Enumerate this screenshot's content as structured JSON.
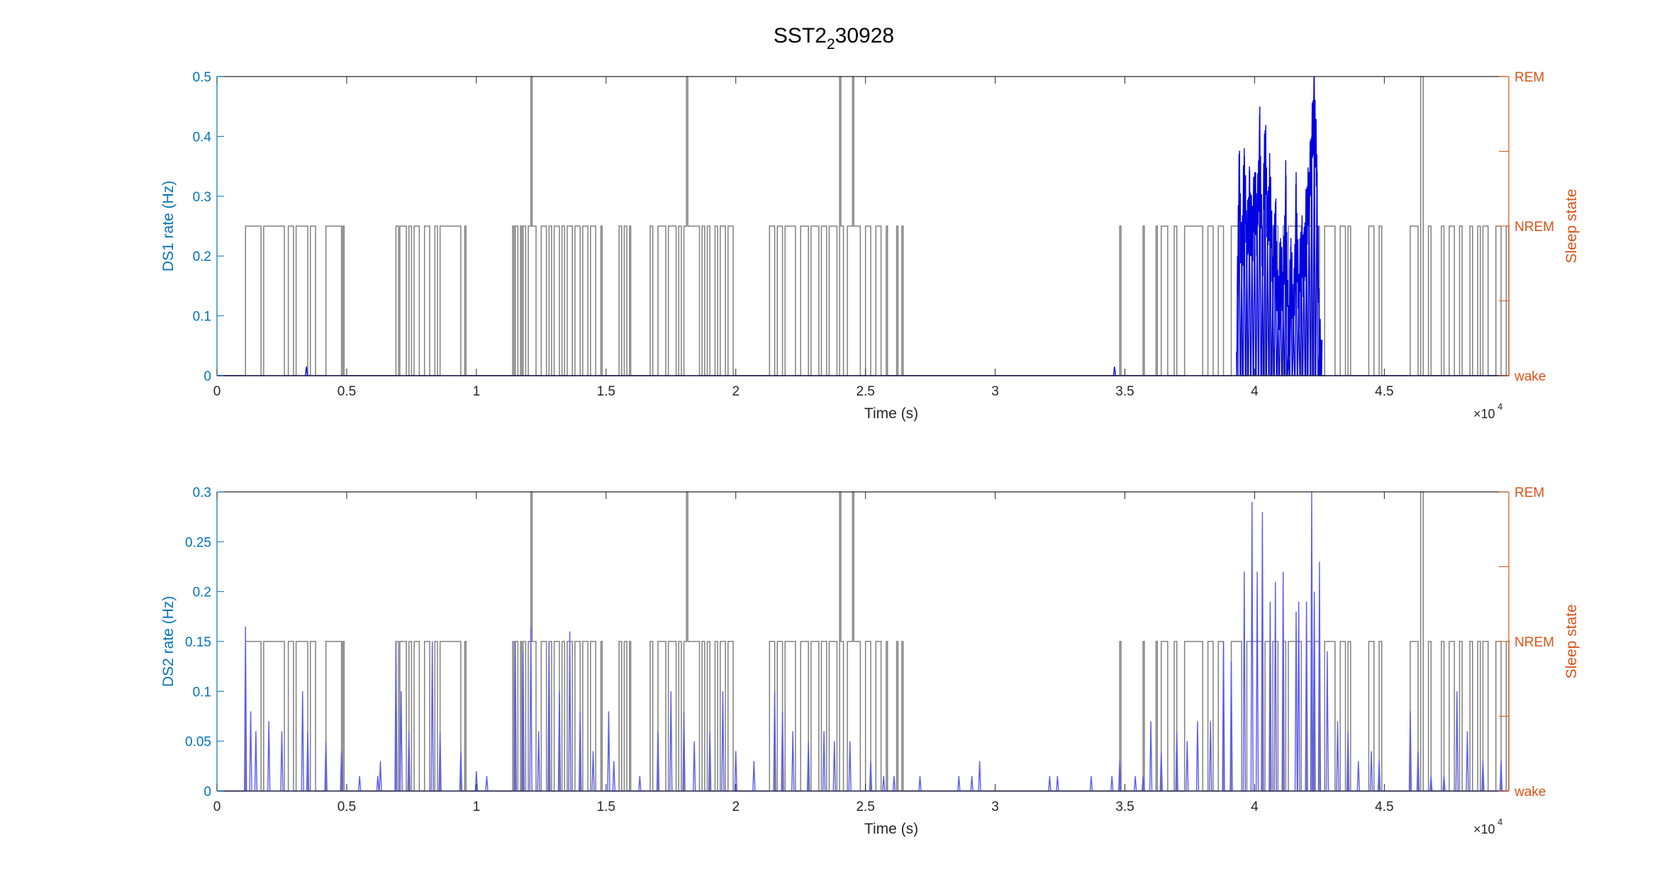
{
  "title": {
    "base": "SST2",
    "sub": "2",
    "rest": "30928"
  },
  "colors": {
    "left_axis": "#0072BD",
    "right_axis": "#D95319",
    "frame": "#262626",
    "state_line": "#808080",
    "ds1_trace": "#0000E0",
    "ds2_trace": "#5A5AF0"
  },
  "x_axis": {
    "label": "Time (s)",
    "multiplier_base": "×10",
    "multiplier_exp": "4",
    "ticks": [
      0,
      5000,
      10000,
      15000,
      20000,
      25000,
      30000,
      35000,
      40000,
      45000
    ],
    "tick_labels": [
      "0",
      "0.5",
      "1",
      "1.5",
      "2",
      "2.5",
      "3",
      "3.5",
      "4",
      "4.5"
    ],
    "range": [
      0,
      49800
    ]
  },
  "right_axis": {
    "label": "Sleep state",
    "tick_labels": [
      "wake",
      "NREM",
      "REM"
    ]
  },
  "sleep_states": {
    "note_levels": [
      "wake",
      "NREM",
      "REM"
    ],
    "segments": [
      [
        0,
        "wake"
      ],
      [
        1100,
        "NREM"
      ],
      [
        1700,
        "wake"
      ],
      [
        1800,
        "NREM"
      ],
      [
        2600,
        "wake"
      ],
      [
        2750,
        "NREM"
      ],
      [
        2950,
        "wake"
      ],
      [
        3050,
        "NREM"
      ],
      [
        3500,
        "wake"
      ],
      [
        3600,
        "NREM"
      ],
      [
        3800,
        "wake"
      ],
      [
        4200,
        "NREM"
      ],
      [
        4800,
        "wake"
      ],
      [
        4850,
        "NREM"
      ],
      [
        4900,
        "wake"
      ],
      [
        6900,
        "NREM"
      ],
      [
        7000,
        "wake"
      ],
      [
        7050,
        "NREM"
      ],
      [
        7300,
        "wake"
      ],
      [
        7400,
        "NREM"
      ],
      [
        7500,
        "wake"
      ],
      [
        7600,
        "NREM"
      ],
      [
        7800,
        "wake"
      ],
      [
        8000,
        "NREM"
      ],
      [
        8200,
        "wake"
      ],
      [
        8400,
        "NREM"
      ],
      [
        8500,
        "wake"
      ],
      [
        8600,
        "NREM"
      ],
      [
        9400,
        "wake"
      ],
      [
        9550,
        "NREM"
      ],
      [
        9600,
        "wake"
      ],
      [
        11400,
        "NREM"
      ],
      [
        11450,
        "wake"
      ],
      [
        11500,
        "NREM"
      ],
      [
        11600,
        "wake"
      ],
      [
        11700,
        "NREM"
      ],
      [
        11750,
        "wake"
      ],
      [
        11800,
        "NREM"
      ],
      [
        11900,
        "wake"
      ],
      [
        12000,
        "NREM"
      ],
      [
        12100,
        "REM"
      ],
      [
        12150,
        "NREM"
      ],
      [
        12300,
        "wake"
      ],
      [
        12500,
        "NREM"
      ],
      [
        12700,
        "wake"
      ],
      [
        12800,
        "NREM"
      ],
      [
        12900,
        "wake"
      ],
      [
        13000,
        "NREM"
      ],
      [
        13200,
        "wake"
      ],
      [
        13300,
        "NREM"
      ],
      [
        13400,
        "wake"
      ],
      [
        13500,
        "NREM"
      ],
      [
        13700,
        "wake"
      ],
      [
        13800,
        "NREM"
      ],
      [
        14000,
        "wake"
      ],
      [
        14100,
        "NREM"
      ],
      [
        14300,
        "wake"
      ],
      [
        14400,
        "NREM"
      ],
      [
        14600,
        "wake"
      ],
      [
        14800,
        "NREM"
      ],
      [
        14850,
        "wake"
      ],
      [
        15500,
        "NREM"
      ],
      [
        15600,
        "wake"
      ],
      [
        15700,
        "NREM"
      ],
      [
        15800,
        "wake"
      ],
      [
        15900,
        "NREM"
      ],
      [
        15950,
        "wake"
      ],
      [
        16700,
        "NREM"
      ],
      [
        16800,
        "wake"
      ],
      [
        17000,
        "NREM"
      ],
      [
        17300,
        "wake"
      ],
      [
        17400,
        "NREM"
      ],
      [
        17700,
        "wake"
      ],
      [
        17800,
        "NREM"
      ],
      [
        17900,
        "wake"
      ],
      [
        18000,
        "NREM"
      ],
      [
        18100,
        "REM"
      ],
      [
        18150,
        "NREM"
      ],
      [
        18600,
        "wake"
      ],
      [
        18700,
        "NREM"
      ],
      [
        18800,
        "wake"
      ],
      [
        18900,
        "NREM"
      ],
      [
        19000,
        "wake"
      ],
      [
        19200,
        "NREM"
      ],
      [
        19300,
        "wake"
      ],
      [
        19400,
        "NREM"
      ],
      [
        19600,
        "wake"
      ],
      [
        19700,
        "NREM"
      ],
      [
        19900,
        "wake"
      ],
      [
        21300,
        "NREM"
      ],
      [
        21500,
        "wake"
      ],
      [
        21600,
        "NREM"
      ],
      [
        21800,
        "wake"
      ],
      [
        21900,
        "NREM"
      ],
      [
        22300,
        "wake"
      ],
      [
        22500,
        "NREM"
      ],
      [
        22800,
        "wake"
      ],
      [
        22900,
        "NREM"
      ],
      [
        23200,
        "wake"
      ],
      [
        23300,
        "NREM"
      ],
      [
        23500,
        "wake"
      ],
      [
        23600,
        "NREM"
      ],
      [
        23900,
        "wake"
      ],
      [
        24000,
        "REM"
      ],
      [
        24050,
        "NREM"
      ],
      [
        24150,
        "wake"
      ],
      [
        24300,
        "NREM"
      ],
      [
        24500,
        "REM"
      ],
      [
        24550,
        "NREM"
      ],
      [
        24800,
        "wake"
      ],
      [
        25000,
        "NREM"
      ],
      [
        25200,
        "wake"
      ],
      [
        25400,
        "NREM"
      ],
      [
        25600,
        "wake"
      ],
      [
        25800,
        "NREM"
      ],
      [
        25850,
        "wake"
      ],
      [
        26200,
        "NREM"
      ],
      [
        26250,
        "wake"
      ],
      [
        26400,
        "NREM"
      ],
      [
        26450,
        "wake"
      ],
      [
        34800,
        "NREM"
      ],
      [
        34850,
        "wake"
      ],
      [
        35700,
        "NREM"
      ],
      [
        35750,
        "wake"
      ],
      [
        36200,
        "NREM"
      ],
      [
        36250,
        "wake"
      ],
      [
        36400,
        "NREM"
      ],
      [
        36650,
        "wake"
      ],
      [
        36900,
        "NREM"
      ],
      [
        37000,
        "wake"
      ],
      [
        37300,
        "NREM"
      ],
      [
        38000,
        "wake"
      ],
      [
        38200,
        "NREM"
      ],
      [
        38400,
        "wake"
      ],
      [
        38600,
        "NREM"
      ],
      [
        38800,
        "wake"
      ],
      [
        39100,
        "NREM"
      ],
      [
        39500,
        "wake"
      ],
      [
        39700,
        "NREM"
      ],
      [
        40300,
        "wake"
      ],
      [
        40400,
        "NREM"
      ],
      [
        40600,
        "wake"
      ],
      [
        40700,
        "NREM"
      ],
      [
        40900,
        "wake"
      ],
      [
        41100,
        "NREM"
      ],
      [
        41200,
        "wake"
      ],
      [
        41300,
        "NREM"
      ],
      [
        41800,
        "wake"
      ],
      [
        42000,
        "NREM"
      ],
      [
        42200,
        "wake"
      ],
      [
        42300,
        "NREM"
      ],
      [
        42500,
        "wake"
      ],
      [
        42700,
        "NREM"
      ],
      [
        43100,
        "wake"
      ],
      [
        43300,
        "NREM"
      ],
      [
        43500,
        "wake"
      ],
      [
        43600,
        "NREM"
      ],
      [
        43700,
        "wake"
      ],
      [
        44400,
        "NREM"
      ],
      [
        44600,
        "wake"
      ],
      [
        44800,
        "NREM"
      ],
      [
        44900,
        "wake"
      ],
      [
        46000,
        "NREM"
      ],
      [
        46300,
        "wake"
      ],
      [
        46400,
        "REM"
      ],
      [
        46500,
        "wake"
      ],
      [
        46700,
        "NREM"
      ],
      [
        46800,
        "wake"
      ],
      [
        47200,
        "NREM"
      ],
      [
        47300,
        "wake"
      ],
      [
        47500,
        "NREM"
      ],
      [
        47700,
        "wake"
      ],
      [
        47900,
        "NREM"
      ],
      [
        48000,
        "wake"
      ],
      [
        48300,
        "NREM"
      ],
      [
        48400,
        "wake"
      ],
      [
        48600,
        "NREM"
      ],
      [
        48700,
        "wake"
      ],
      [
        48800,
        "NREM"
      ],
      [
        49000,
        "wake"
      ],
      [
        49300,
        "NREM"
      ],
      [
        49500,
        "wake"
      ],
      [
        49700,
        "NREM"
      ],
      [
        49800,
        "wake"
      ]
    ]
  },
  "chart_data": [
    {
      "type": "line",
      "title": "",
      "xlabel": "Time (s)",
      "ylabel": "DS1 rate (Hz)",
      "ylim": [
        0,
        0.5
      ],
      "yticks": [
        0,
        0.1,
        0.2,
        0.3,
        0.4,
        0.5
      ],
      "ytick_labels": [
        "0",
        "0.1",
        "0.2",
        "0.3",
        "0.4",
        "0.5"
      ],
      "xlim": [
        0,
        49800
      ],
      "bin_s": 60,
      "series": [
        {
          "peaks": [
            [
              3450,
              0.015
            ],
            [
              34600,
              0.015
            ],
            [
              38100,
              0.0
            ],
            [
              39300,
              0.0
            ],
            [
              39400,
              0.35
            ],
            [
              39500,
              0.18
            ],
            [
              39600,
              0.34
            ],
            [
              39700,
              0.21
            ],
            [
              39800,
              0.29
            ],
            [
              39900,
              0.23
            ],
            [
              40000,
              0.3
            ],
            [
              40100,
              0.25
            ],
            [
              40200,
              0.39
            ],
            [
              40300,
              0.18
            ],
            [
              40400,
              0.41
            ],
            [
              40500,
              0.24
            ],
            [
              40600,
              0.33
            ],
            [
              40700,
              0.14
            ],
            [
              40800,
              0.27
            ],
            [
              40900,
              0.1
            ],
            [
              41000,
              0.19
            ],
            [
              41100,
              0.12
            ],
            [
              41200,
              0.3
            ],
            [
              41300,
              0.05
            ],
            [
              41400,
              0.19
            ],
            [
              41500,
              0.08
            ],
            [
              41600,
              0.28
            ],
            [
              41700,
              0.12
            ],
            [
              41800,
              0.22
            ],
            [
              41900,
              0.18
            ],
            [
              42000,
              0.27
            ],
            [
              42100,
              0.3
            ],
            [
              42200,
              0.38
            ],
            [
              42300,
              0.46
            ],
            [
              42400,
              0.33
            ],
            [
              42500,
              0.05
            ],
            [
              42600,
              0.0
            ]
          ],
          "window": [
            39300,
            42600
          ]
        }
      ]
    },
    {
      "type": "line",
      "title": "",
      "xlabel": "Time (s)",
      "ylabel": "DS2 rate (Hz)",
      "ylim": [
        0,
        0.3
      ],
      "yticks": [
        0,
        0.05,
        0.1,
        0.15,
        0.2,
        0.25,
        0.3
      ],
      "ytick_labels": [
        "0",
        "0.05",
        "0.1",
        "0.15",
        "0.2",
        "0.25",
        "0.3"
      ],
      "xlim": [
        0,
        49800
      ],
      "bin_s": 60,
      "series": [
        {
          "peaks": [
            [
              1100,
              0.165
            ],
            [
              1300,
              0.08
            ],
            [
              1500,
              0.06
            ],
            [
              2000,
              0.07
            ],
            [
              2500,
              0.06
            ],
            [
              3300,
              0.1
            ],
            [
              3500,
              0.06
            ],
            [
              4200,
              0.05
            ],
            [
              4800,
              0.04
            ],
            [
              5500,
              0.015
            ],
            [
              6200,
              0.015
            ],
            [
              6300,
              0.03
            ],
            [
              6900,
              0.15
            ],
            [
              7100,
              0.1
            ],
            [
              7400,
              0.06
            ],
            [
              8300,
              0.15
            ],
            [
              8600,
              0.06
            ],
            [
              9400,
              0.04
            ],
            [
              10000,
              0.02
            ],
            [
              10400,
              0.015
            ],
            [
              11500,
              0.15
            ],
            [
              11800,
              0.14
            ],
            [
              12100,
              0.165
            ],
            [
              12400,
              0.06
            ],
            [
              12800,
              0.15
            ],
            [
              13200,
              0.1
            ],
            [
              13600,
              0.16
            ],
            [
              14000,
              0.08
            ],
            [
              14500,
              0.04
            ],
            [
              15100,
              0.08
            ],
            [
              15300,
              0.03
            ],
            [
              16300,
              0.015
            ],
            [
              17000,
              0.06
            ],
            [
              17500,
              0.1
            ],
            [
              18000,
              0.08
            ],
            [
              18400,
              0.05
            ],
            [
              19000,
              0.06
            ],
            [
              19500,
              0.1
            ],
            [
              20000,
              0.04
            ],
            [
              20700,
              0.03
            ],
            [
              21500,
              0.1
            ],
            [
              21800,
              0.08
            ],
            [
              22200,
              0.06
            ],
            [
              22800,
              0.05
            ],
            [
              23400,
              0.06
            ],
            [
              23800,
              0.05
            ],
            [
              24400,
              0.05
            ],
            [
              25200,
              0.03
            ],
            [
              25700,
              0.015
            ],
            [
              26100,
              0.015
            ],
            [
              27100,
              0.015
            ],
            [
              28600,
              0.015
            ],
            [
              29100,
              0.015
            ],
            [
              29400,
              0.03
            ],
            [
              32100,
              0.015
            ],
            [
              32400,
              0.015
            ],
            [
              33700,
              0.015
            ],
            [
              34500,
              0.015
            ],
            [
              34800,
              0.03
            ],
            [
              35400,
              0.015
            ],
            [
              35700,
              0.015
            ],
            [
              36000,
              0.07
            ],
            [
              36400,
              0.04
            ],
            [
              37000,
              0.06
            ],
            [
              37400,
              0.05
            ],
            [
              37800,
              0.07
            ],
            [
              38300,
              0.07
            ],
            [
              38800,
              0.15
            ],
            [
              39100,
              0.13
            ],
            [
              39600,
              0.22
            ],
            [
              39900,
              0.29
            ],
            [
              40100,
              0.22
            ],
            [
              40300,
              0.28
            ],
            [
              40600,
              0.19
            ],
            [
              40800,
              0.21
            ],
            [
              41100,
              0.22
            ],
            [
              41600,
              0.18
            ],
            [
              41700,
              0.19
            ],
            [
              42000,
              0.19
            ],
            [
              42200,
              0.3
            ],
            [
              42300,
              0.2
            ],
            [
              42500,
              0.23
            ],
            [
              42800,
              0.14
            ],
            [
              43200,
              0.07
            ],
            [
              43600,
              0.06
            ],
            [
              44000,
              0.03
            ],
            [
              44500,
              0.04
            ],
            [
              44800,
              0.03
            ],
            [
              46000,
              0.08
            ],
            [
              46300,
              0.04
            ],
            [
              46800,
              0.015
            ],
            [
              47300,
              0.015
            ],
            [
              47800,
              0.1
            ],
            [
              48200,
              0.06
            ],
            [
              48800,
              0.03
            ],
            [
              49500,
              0.03
            ]
          ]
        }
      ]
    }
  ]
}
